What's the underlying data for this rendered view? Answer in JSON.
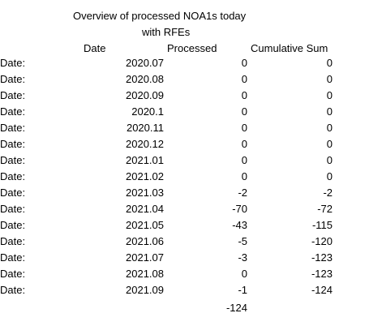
{
  "title": {
    "line1": "Overview of processed NOA1s today",
    "line2": "with RFEs"
  },
  "headers": {
    "date": "Date",
    "processed": "Processed",
    "cumulative": "Cumulative Sum"
  },
  "rows": [
    {
      "label": "Date:",
      "date": "2020.07",
      "processed": "0",
      "cumulative": "0"
    },
    {
      "label": "Date:",
      "date": "2020.08",
      "processed": "0",
      "cumulative": "0"
    },
    {
      "label": "Date:",
      "date": "2020.09",
      "processed": "0",
      "cumulative": "0"
    },
    {
      "label": "Date:",
      "date": "2020.1",
      "processed": "0",
      "cumulative": "0"
    },
    {
      "label": "Date:",
      "date": "2020.11",
      "processed": "0",
      "cumulative": "0"
    },
    {
      "label": "Date:",
      "date": "2020.12",
      "processed": "0",
      "cumulative": "0"
    },
    {
      "label": "Date:",
      "date": "2021.01",
      "processed": "0",
      "cumulative": "0"
    },
    {
      "label": "Date:",
      "date": "2021.02",
      "processed": "0",
      "cumulative": "0"
    },
    {
      "label": "Date:",
      "date": "2021.03",
      "processed": "-2",
      "cumulative": "-2"
    },
    {
      "label": "Date:",
      "date": "2021.04",
      "processed": "-70",
      "cumulative": "-72"
    },
    {
      "label": "Date:",
      "date": "2021.05",
      "processed": "-43",
      "cumulative": "-115"
    },
    {
      "label": "Date:",
      "date": "2021.06",
      "processed": "-5",
      "cumulative": "-120"
    },
    {
      "label": "Date:",
      "date": "2021.07",
      "processed": "-3",
      "cumulative": "-123"
    },
    {
      "label": "Date:",
      "date": "2021.08",
      "processed": "0",
      "cumulative": "-123"
    },
    {
      "label": "Date:",
      "date": "2021.09",
      "processed": "-1",
      "cumulative": "-124"
    }
  ],
  "total": "-124"
}
